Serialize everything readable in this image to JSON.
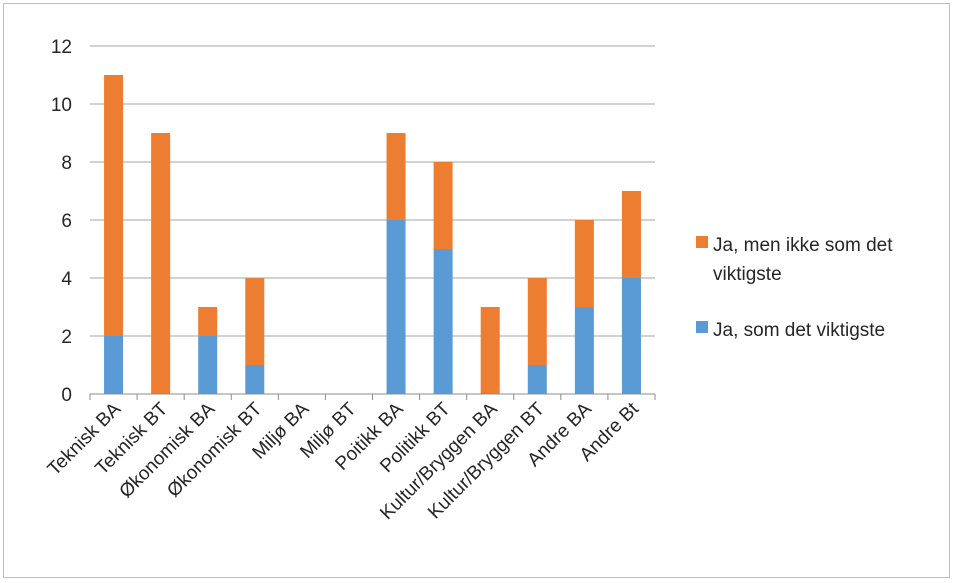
{
  "colors": {
    "orange": "#ED7D31",
    "blue": "#5B9BD5",
    "grid": "#a6a6a6",
    "text": "#262626"
  },
  "chart_data": {
    "type": "bar",
    "stacked": true,
    "categories": [
      "Teknisk BA",
      "Teknisk BT",
      "Økonomisk BA",
      "Økonomisk BT",
      "Miljø BA",
      "Miljø BT",
      "Poitikk BA",
      "Politikk BT",
      "Kultur/Bryggen BA",
      "Kultur/Bryggen BT",
      "Andre BA",
      "Andre Bt"
    ],
    "series": [
      {
        "name": "Ja, som det viktigste",
        "color": "#5B9BD5",
        "values": [
          2,
          0,
          2,
          1,
          0,
          0,
          6,
          5,
          0,
          1,
          3,
          4
        ]
      },
      {
        "name": "Ja, men ikke som det viktigste",
        "color": "#ED7D31",
        "values": [
          9,
          9,
          1,
          3,
          0,
          0,
          3,
          3,
          3,
          3,
          3,
          3
        ]
      }
    ],
    "ylim": [
      0,
      12
    ],
    "yticks": [
      "0",
      "2",
      "4",
      "6",
      "8",
      "10",
      "12"
    ],
    "grid": true,
    "legend_position": "right"
  }
}
